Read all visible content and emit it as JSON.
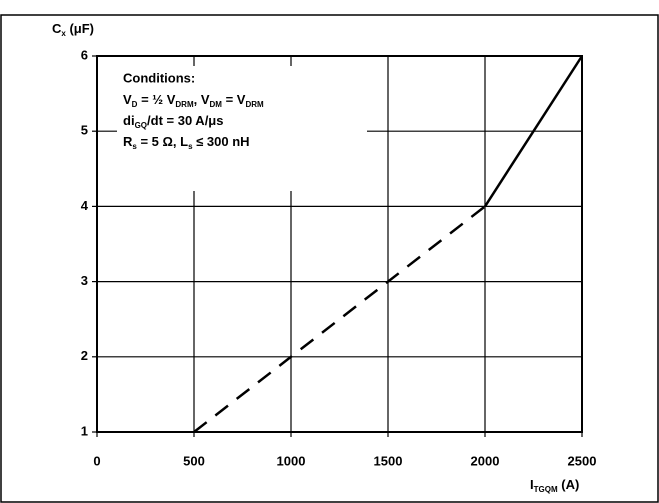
{
  "chart_data": {
    "type": "line",
    "y_label": [
      "C",
      "x",
      " (μF)"
    ],
    "x_label": [
      "I",
      "TGQM",
      " (A)"
    ],
    "conditions": {
      "title": "Conditions:",
      "lines": [
        [
          "V",
          "D",
          " = ½ V",
          "DRM",
          ", V",
          "DM",
          " = V",
          "DRM"
        ],
        [
          "di",
          "GQ",
          "/dt = 30 A/μs"
        ],
        [
          "R",
          "s",
          " = 5 Ω, L",
          "s",
          " ≤ 300 nH"
        ]
      ]
    },
    "series": [
      {
        "color": "#000000",
        "dash": "dashed",
        "x": [
          500,
          1000,
          1500,
          2000
        ],
        "values": [
          1,
          2,
          3,
          4
        ]
      },
      {
        "color": "#000000",
        "dash": "solid",
        "x": [
          2000,
          2500
        ],
        "values": [
          4,
          6
        ]
      }
    ],
    "xlim": [
      0,
      2500
    ],
    "ylim": [
      1,
      6
    ],
    "xticks": [
      0,
      500,
      1000,
      1500,
      2000,
      2500
    ],
    "yticks": [
      1,
      2,
      3,
      4,
      5,
      6
    ],
    "grid": true
  }
}
